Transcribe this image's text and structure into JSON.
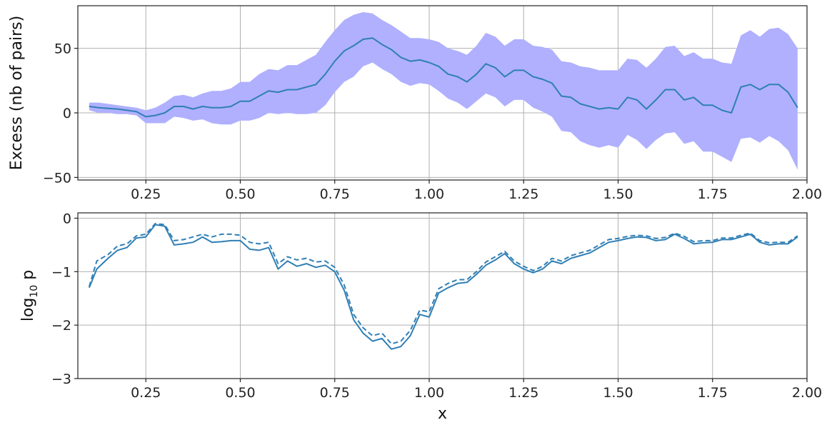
{
  "chart_data": [
    {
      "type": "line",
      "ylabel": "Excess (nb of pairs)",
      "xlabel": "",
      "xlim": [
        0.07,
        2.0
      ],
      "ylim": [
        -52,
        83
      ],
      "grid": true,
      "xticks": [
        0.25,
        0.5,
        0.75,
        1.0,
        1.25,
        1.5,
        1.75,
        2.0
      ],
      "xtick_labels": [
        "0.25",
        "0.50",
        "0.75",
        "1.00",
        "1.25",
        "1.50",
        "1.75",
        "2.00"
      ],
      "yticks": [
        -50,
        0,
        50
      ],
      "ytick_labels": [
        "−50",
        "0",
        "50"
      ],
      "band_color": "#b0b0ff",
      "line_color": "#2f7fb5",
      "x": [
        0.1,
        0.125,
        0.15,
        0.175,
        0.2,
        0.225,
        0.25,
        0.275,
        0.3,
        0.325,
        0.35,
        0.375,
        0.4,
        0.425,
        0.45,
        0.475,
        0.5,
        0.525,
        0.55,
        0.575,
        0.6,
        0.625,
        0.65,
        0.675,
        0.7,
        0.725,
        0.75,
        0.775,
        0.8,
        0.825,
        0.85,
        0.875,
        0.9,
        0.925,
        0.95,
        0.975,
        1.0,
        1.025,
        1.05,
        1.075,
        1.1,
        1.125,
        1.15,
        1.175,
        1.2,
        1.225,
        1.25,
        1.275,
        1.3,
        1.325,
        1.35,
        1.375,
        1.4,
        1.425,
        1.45,
        1.475,
        1.5,
        1.525,
        1.55,
        1.575,
        1.6,
        1.625,
        1.65,
        1.675,
        1.7,
        1.725,
        1.75,
        1.775,
        1.8,
        1.825,
        1.85,
        1.875,
        1.9,
        1.925,
        1.95,
        1.975
      ],
      "series": [
        {
          "values": [
            5,
            4,
            3.5,
            3,
            2,
            1,
            -3,
            -2,
            0,
            5,
            5,
            3,
            5,
            4,
            4,
            5,
            9,
            9,
            13,
            17,
            16,
            18,
            18,
            20,
            22,
            30,
            40,
            48,
            52,
            57,
            58,
            53,
            49,
            43,
            40,
            41,
            39,
            36,
            30,
            28,
            24,
            30,
            38,
            35,
            28,
            33,
            33,
            28,
            26,
            23,
            13,
            12,
            7,
            5,
            3,
            4,
            3,
            12,
            10,
            3,
            10,
            18,
            18,
            10,
            12,
            6,
            6,
            2,
            0,
            20,
            22,
            18,
            22,
            22,
            16,
            4
          ]
        }
      ],
      "band_upper": [
        8,
        8,
        7,
        6,
        5,
        4,
        2,
        4,
        8,
        13,
        14,
        12,
        15,
        17,
        17,
        19,
        24,
        24,
        30,
        34,
        33,
        37,
        37,
        41,
        45,
        55,
        64,
        72,
        76,
        78,
        77,
        72,
        68,
        63,
        58,
        58,
        57,
        55,
        50,
        48,
        45,
        52,
        62,
        59,
        52,
        57,
        57,
        52,
        51,
        49,
        40,
        39,
        36,
        35,
        33,
        33,
        33,
        42,
        41,
        35,
        42,
        51,
        52,
        44,
        47,
        42,
        42,
        39,
        38,
        60,
        64,
        59,
        65,
        66,
        61,
        50
      ],
      "band_lower": [
        2,
        0,
        0,
        -1,
        -1,
        -2,
        -8,
        -8,
        -8,
        -3,
        -4,
        -6,
        -5,
        -8,
        -9,
        -9,
        -6,
        -6,
        -4,
        0,
        -1,
        0,
        -1,
        -1,
        0,
        6,
        16,
        24,
        28,
        36,
        39,
        34,
        30,
        24,
        21,
        23,
        22,
        17,
        11,
        8,
        3,
        9,
        15,
        12,
        5,
        10,
        10,
        4,
        1,
        -3,
        -14,
        -15,
        -22,
        -25,
        -27,
        -25,
        -27,
        -17,
        -21,
        -28,
        -21,
        -16,
        -15,
        -24,
        -22,
        -30,
        -30,
        -34,
        -38,
        -20,
        -19,
        -23,
        -18,
        -22,
        -29,
        -44
      ]
    },
    {
      "type": "line",
      "ylabel": "log₁₀ p",
      "xlabel": "x",
      "xlim": [
        0.07,
        2.0
      ],
      "ylim": [
        -3.0,
        0.1
      ],
      "grid": true,
      "xticks": [
        0.25,
        0.5,
        0.75,
        1.0,
        1.25,
        1.5,
        1.75,
        2.0
      ],
      "xtick_labels": [
        "0.25",
        "0.50",
        "0.75",
        "1.00",
        "1.25",
        "1.50",
        "1.75",
        "2.00"
      ],
      "yticks": [
        -3,
        -2,
        -1,
        0
      ],
      "ytick_labels": [
        "−3",
        "−2",
        "−1",
        "0"
      ],
      "line_color": "#2f7fb5",
      "x": [
        0.1,
        0.12,
        0.15,
        0.175,
        0.2,
        0.225,
        0.25,
        0.275,
        0.3,
        0.325,
        0.35,
        0.375,
        0.4,
        0.425,
        0.45,
        0.475,
        0.5,
        0.525,
        0.55,
        0.575,
        0.6,
        0.625,
        0.65,
        0.675,
        0.7,
        0.725,
        0.75,
        0.775,
        0.8,
        0.825,
        0.85,
        0.875,
        0.9,
        0.925,
        0.95,
        0.975,
        1.0,
        1.025,
        1.05,
        1.075,
        1.1,
        1.125,
        1.15,
        1.175,
        1.2,
        1.225,
        1.25,
        1.275,
        1.3,
        1.325,
        1.35,
        1.375,
        1.4,
        1.425,
        1.45,
        1.475,
        1.5,
        1.525,
        1.55,
        1.575,
        1.6,
        1.625,
        1.65,
        1.675,
        1.7,
        1.725,
        1.75,
        1.775,
        1.8,
        1.825,
        1.85,
        1.875,
        1.9,
        1.925,
        1.95,
        1.975
      ],
      "series": [
        {
          "style": "solid",
          "values": [
            -1.3,
            -0.95,
            -0.75,
            -0.6,
            -0.55,
            -0.37,
            -0.35,
            -0.12,
            -0.15,
            -0.5,
            -0.48,
            -0.45,
            -0.35,
            -0.45,
            -0.44,
            -0.42,
            -0.42,
            -0.58,
            -0.6,
            -0.55,
            -0.95,
            -0.8,
            -0.9,
            -0.85,
            -0.92,
            -0.88,
            -1.0,
            -1.35,
            -1.9,
            -2.15,
            -2.3,
            -2.25,
            -2.45,
            -2.4,
            -2.2,
            -1.8,
            -1.85,
            -1.4,
            -1.3,
            -1.22,
            -1.2,
            -1.05,
            -0.88,
            -0.78,
            -0.66,
            -0.85,
            -0.95,
            -1.02,
            -0.95,
            -0.8,
            -0.85,
            -0.75,
            -0.7,
            -0.65,
            -0.55,
            -0.45,
            -0.42,
            -0.38,
            -0.35,
            -0.36,
            -0.42,
            -0.4,
            -0.3,
            -0.38,
            -0.48,
            -0.46,
            -0.45,
            -0.4,
            -0.4,
            -0.35,
            -0.3,
            -0.45,
            -0.5,
            -0.48,
            -0.48,
            -0.35
          ]
        },
        {
          "style": "dashed",
          "values": [
            -1.28,
            -0.8,
            -0.68,
            -0.52,
            -0.48,
            -0.33,
            -0.3,
            -0.1,
            -0.12,
            -0.42,
            -0.4,
            -0.35,
            -0.3,
            -0.35,
            -0.3,
            -0.3,
            -0.32,
            -0.45,
            -0.48,
            -0.45,
            -0.85,
            -0.72,
            -0.78,
            -0.75,
            -0.82,
            -0.8,
            -0.92,
            -1.25,
            -1.8,
            -2.05,
            -2.2,
            -2.15,
            -2.35,
            -2.3,
            -2.1,
            -1.72,
            -1.75,
            -1.32,
            -1.22,
            -1.15,
            -1.15,
            -1.0,
            -0.82,
            -0.72,
            -0.62,
            -0.8,
            -0.9,
            -0.98,
            -0.9,
            -0.75,
            -0.8,
            -0.7,
            -0.65,
            -0.6,
            -0.5,
            -0.4,
            -0.38,
            -0.34,
            -0.32,
            -0.33,
            -0.38,
            -0.36,
            -0.28,
            -0.34,
            -0.44,
            -0.42,
            -0.42,
            -0.37,
            -0.37,
            -0.32,
            -0.28,
            -0.42,
            -0.46,
            -0.45,
            -0.45,
            -0.33
          ]
        }
      ]
    }
  ]
}
